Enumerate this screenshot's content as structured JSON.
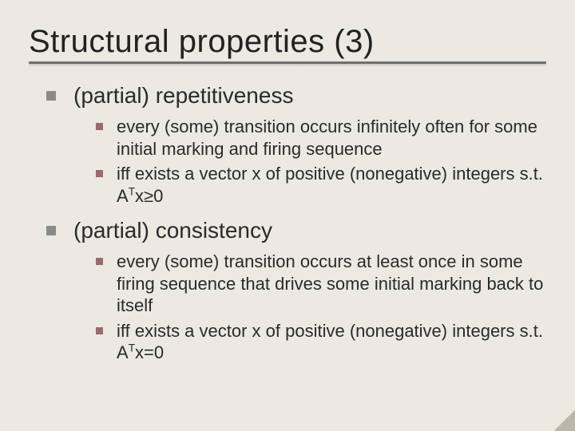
{
  "background_color": "#ece9e2",
  "text_color": "#2a2a2a",
  "title": "Structural properties (3)",
  "title_fontsize": 40,
  "rule_color": "#6f6f6f",
  "bullets": {
    "lvl1_square_color": "#8a8a8a",
    "lvl2_square_color": "#9a6b6b",
    "lvl1_fontsize": 28,
    "lvl2_fontsize": 22
  },
  "items": [
    {
      "label": "(partial) repetitiveness",
      "sub": [
        {
          "text": "every (some) transition occurs infinitely often for some initial marking and firing sequence"
        },
        {
          "prefix": "iff exists a vector x of positive (nonegative) integers s.t. A",
          "sup": "T",
          "mid": "x",
          "op": "≥",
          "suffix": "0"
        }
      ]
    },
    {
      "label": "(partial) consistency",
      "sub": [
        {
          "text": "every (some) transition occurs at least once in some firing sequence that drives some initial marking back to itself"
        },
        {
          "prefix": "iff exists a vector x of positive (nonegative) integers s.t. A",
          "sup": "T",
          "mid": "x",
          "op": "=",
          "suffix": "0"
        }
      ]
    }
  ]
}
